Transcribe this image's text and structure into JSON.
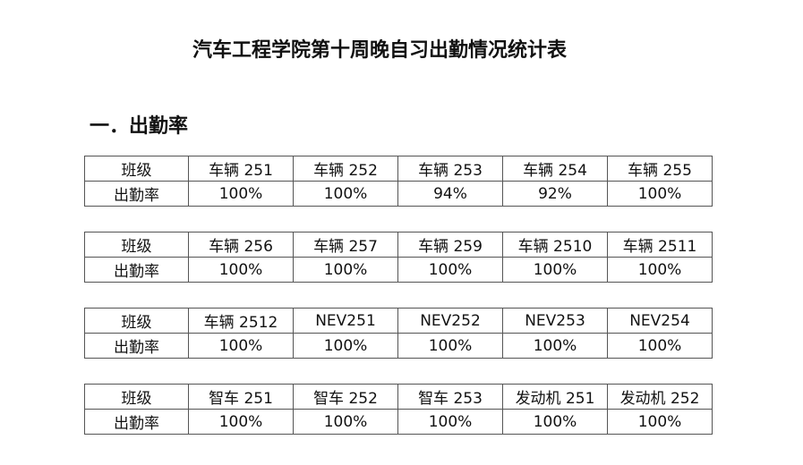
{
  "title": "汽车工程学院第十周晚自习出勤情况统计表",
  "section_heading": "一．出勤率",
  "row_labels": {
    "class": "班级",
    "rate": "出勤率"
  },
  "tables": [
    {
      "classes": [
        "车辆 251",
        "车辆 252",
        "车辆 253",
        "车辆 254",
        "车辆 255"
      ],
      "rates": [
        "100%",
        "100%",
        "94%",
        "92%",
        "100%"
      ]
    },
    {
      "classes": [
        "车辆 256",
        "车辆 257",
        "车辆 259",
        "车辆 2510",
        "车辆 2511"
      ],
      "rates": [
        "100%",
        "100%",
        "100%",
        "100%",
        "100%"
      ]
    },
    {
      "classes": [
        "车辆 2512",
        "NEV251",
        "NEV252",
        "NEV253",
        "NEV254"
      ],
      "rates": [
        "100%",
        "100%",
        "100%",
        "100%",
        "100%"
      ]
    },
    {
      "classes": [
        "智车 251",
        "智车 252",
        "智车 253",
        "发动机 251",
        "发动机 252"
      ],
      "rates": [
        "100%",
        "100%",
        "100%",
        "100%",
        "100%"
      ]
    }
  ]
}
